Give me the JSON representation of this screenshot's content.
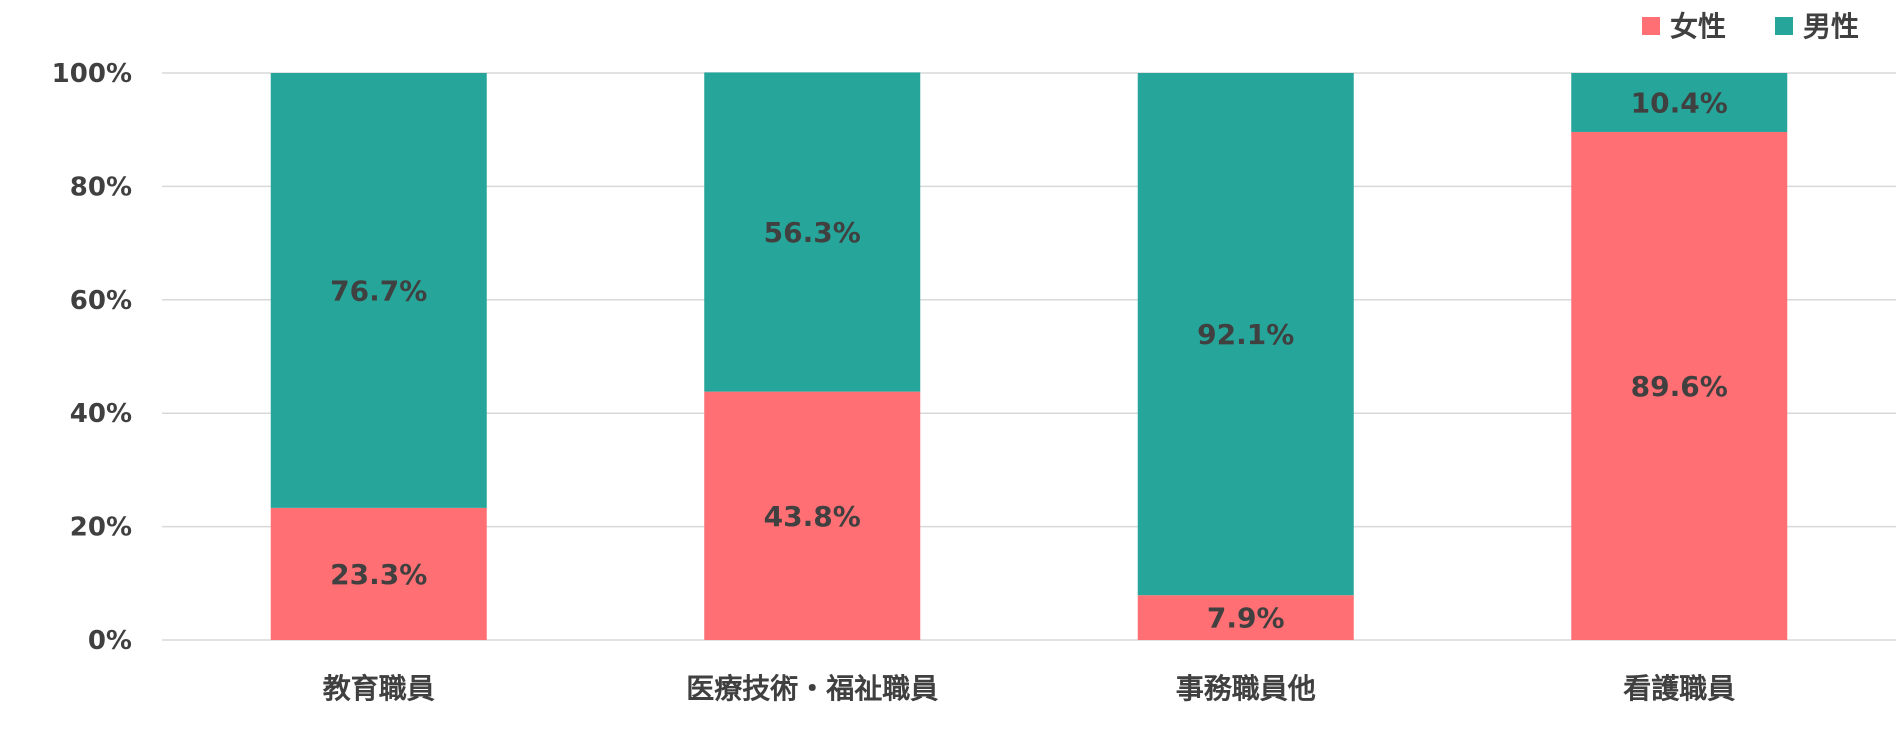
{
  "chart_data": {
    "type": "bar",
    "stacked": true,
    "categories": [
      "教育職員",
      "医療技術・福祉職員",
      "事務職員他",
      "看護職員"
    ],
    "series": [
      {
        "name": "女性",
        "color": "#ff6f73",
        "values": [
          23.3,
          43.8,
          7.9,
          89.6
        ],
        "labels": [
          "23.3%",
          "43.8%",
          "7.9%",
          "89.6%"
        ]
      },
      {
        "name": "男性",
        "color": "#26a69a",
        "values": [
          76.7,
          56.3,
          92.1,
          10.4
        ],
        "labels": [
          "76.7%",
          "56.3%",
          "92.1%",
          "10.4%"
        ]
      }
    ],
    "ylim": [
      0,
      100
    ],
    "yticks": [
      0,
      20,
      40,
      60,
      80,
      100
    ],
    "ytick_labels": [
      "0%",
      "20%",
      "40%",
      "60%",
      "80%",
      "100%"
    ],
    "grid": true,
    "legend_position": "top-right"
  }
}
